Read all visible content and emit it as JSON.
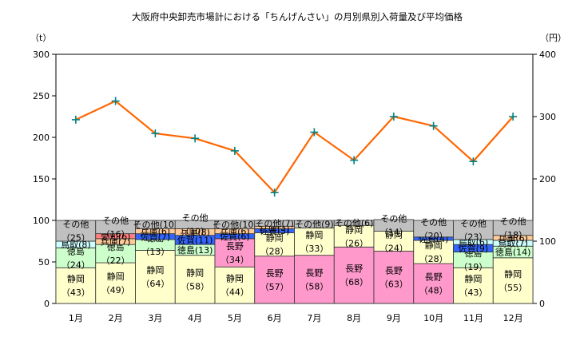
{
  "chart_data": {
    "type": "bar",
    "stacked": true,
    "title": "大阪府中央卸売市場計における「ちんげんさい」の月別県別入荷量及び平均価格",
    "ylabel_left": "（t）",
    "ylabel_right": "（円）",
    "ylim_left": [
      0,
      300
    ],
    "ylim_right": [
      0,
      400
    ],
    "yticks_left": [
      "0",
      "50",
      "100",
      "150",
      "200",
      "250",
      "300"
    ],
    "yticks_right": [
      "0",
      "100",
      "200",
      "300",
      "400"
    ],
    "grid": false,
    "categories": [
      "1月",
      "2月",
      "3月",
      "4月",
      "5月",
      "6月",
      "7月",
      "8月",
      "9月",
      "10月",
      "11月",
      "12月"
    ],
    "colors": {
      "静岡": "#ffffcc",
      "長野": "#ff99cc",
      "徳島": "#ccffcc",
      "鳥取": "#ccffff",
      "佐賀": "#3366ff",
      "兵庫": "#ffcc99",
      "愛知": "#ff8080",
      "その他": "#c0c0c0",
      "price_line": "#ff6600",
      "price_marker": "#008080"
    },
    "bars": [
      {
        "month": "1月",
        "segments": [
          {
            "name": "静岡",
            "value": 43,
            "label": "静岡\n（43）"
          },
          {
            "name": "徳島",
            "value": 24,
            "label": "徳島\n（24）"
          },
          {
            "name": "鳥取",
            "value": 8,
            "label": "鳥取(8)"
          },
          {
            "name": "その他",
            "value": 25,
            "label": "その他\n（25）"
          }
        ]
      },
      {
        "month": "2月",
        "segments": [
          {
            "name": "静岡",
            "value": 49,
            "label": "静岡\n（49）"
          },
          {
            "name": "徳島",
            "value": 22,
            "label": "徳島\n（22）"
          },
          {
            "name": "兵庫",
            "value": 7,
            "label": "兵庫(7)"
          },
          {
            "name": "愛知",
            "value": 6,
            "label": "愛知(6)"
          },
          {
            "name": "その他",
            "value": 16,
            "label": "その他\n（16）"
          }
        ]
      },
      {
        "month": "3月",
        "segments": [
          {
            "name": "静岡",
            "value": 64,
            "label": "静岡\n（64）"
          },
          {
            "name": "徳島",
            "value": 13,
            "label": "徳島\n（13）"
          },
          {
            "name": "佐賀",
            "value": 7,
            "label": "佐賀(7)"
          },
          {
            "name": "兵庫",
            "value": 6,
            "label": "兵庫(6)"
          },
          {
            "name": "その他",
            "value": 10,
            "label": "その他(10)"
          }
        ]
      },
      {
        "month": "4月",
        "segments": [
          {
            "name": "静岡",
            "value": 58,
            "label": "静岡\n（58）"
          },
          {
            "name": "徳島",
            "value": 13,
            "label": "徳島(13)"
          },
          {
            "name": "佐賀",
            "value": 11,
            "label": "佐賀(11)"
          },
          {
            "name": "兵庫",
            "value": 8,
            "label": "兵庫(8)"
          },
          {
            "name": "その他",
            "value": 10,
            "label": "その他\n（10）"
          }
        ]
      },
      {
        "month": "5月",
        "segments": [
          {
            "name": "静岡",
            "value": 44,
            "label": "静岡\n（44）"
          },
          {
            "name": "長野",
            "value": 34,
            "label": "長野\n（34）"
          },
          {
            "name": "佐賀",
            "value": 6,
            "label": "佐賀(6)"
          },
          {
            "name": "兵庫",
            "value": 6,
            "label": "兵庫(6)"
          },
          {
            "name": "その他",
            "value": 10,
            "label": "その他(10)"
          }
        ]
      },
      {
        "month": "6月",
        "segments": [
          {
            "name": "長野",
            "value": 57,
            "label": "長野\n（57）"
          },
          {
            "name": "静岡",
            "value": 28,
            "label": "静岡\n（28）"
          },
          {
            "name": "佐賀",
            "value": 5,
            "label": "佐賀(5)"
          },
          {
            "name": "兵庫",
            "value": 3,
            "label": "兵庫(3)"
          },
          {
            "name": "その他",
            "value": 7,
            "label": "その他(7)"
          }
        ]
      },
      {
        "month": "7月",
        "segments": [
          {
            "name": "長野",
            "value": 58,
            "label": "長野\n（58）"
          },
          {
            "name": "静岡",
            "value": 33,
            "label": "静岡\n（33）"
          },
          {
            "name": "その他",
            "value": 9,
            "label": "その他(9)"
          }
        ]
      },
      {
        "month": "8月",
        "segments": [
          {
            "name": "長野",
            "value": 68,
            "label": "長野\n（68）"
          },
          {
            "name": "静岡",
            "value": 26,
            "label": "静岡\n（26）"
          },
          {
            "name": "その他",
            "value": 6,
            "label": "その他(6)"
          }
        ]
      },
      {
        "month": "9月",
        "segments": [
          {
            "name": "長野",
            "value": 63,
            "label": "長野\n（63）"
          },
          {
            "name": "静岡",
            "value": 24,
            "label": "静岡\n（24）"
          },
          {
            "name": "その他",
            "value": 14,
            "label": "その他\n（14）"
          }
        ]
      },
      {
        "month": "10月",
        "segments": [
          {
            "name": "長野",
            "value": 48,
            "label": "長野\n（48）"
          },
          {
            "name": "静岡",
            "value": 28,
            "label": "静岡\n（28）"
          },
          {
            "name": "佐賀",
            "value": 4,
            "label": "佐賀(4)"
          },
          {
            "name": "その他",
            "value": 20,
            "label": "その他\n（20）"
          }
        ]
      },
      {
        "month": "11月",
        "segments": [
          {
            "name": "静岡",
            "value": 43,
            "label": "静岡\n（43）"
          },
          {
            "name": "徳島",
            "value": 19,
            "label": "徳島\n（19）"
          },
          {
            "name": "佐賀",
            "value": 9,
            "label": "佐賀(9)"
          },
          {
            "name": "鳥取",
            "value": 6,
            "label": "鳥取(6)"
          },
          {
            "name": "その他",
            "value": 23,
            "label": "その他\n（23）"
          }
        ]
      },
      {
        "month": "12月",
        "segments": [
          {
            "name": "静岡",
            "value": 55,
            "label": "静岡\n（55）"
          },
          {
            "name": "徳島",
            "value": 14,
            "label": "徳島(14)"
          },
          {
            "name": "鳥取",
            "value": 7,
            "label": "鳥取(7)"
          },
          {
            "name": "兵庫",
            "value": 6,
            "label": "兵庫(6)"
          },
          {
            "name": "その他",
            "value": 18,
            "label": "その他\n（18）"
          }
        ]
      }
    ],
    "price_series": {
      "axis": "right",
      "values": [
        295,
        325,
        273,
        265,
        245,
        178,
        275,
        230,
        300,
        285,
        228,
        300
      ]
    }
  }
}
